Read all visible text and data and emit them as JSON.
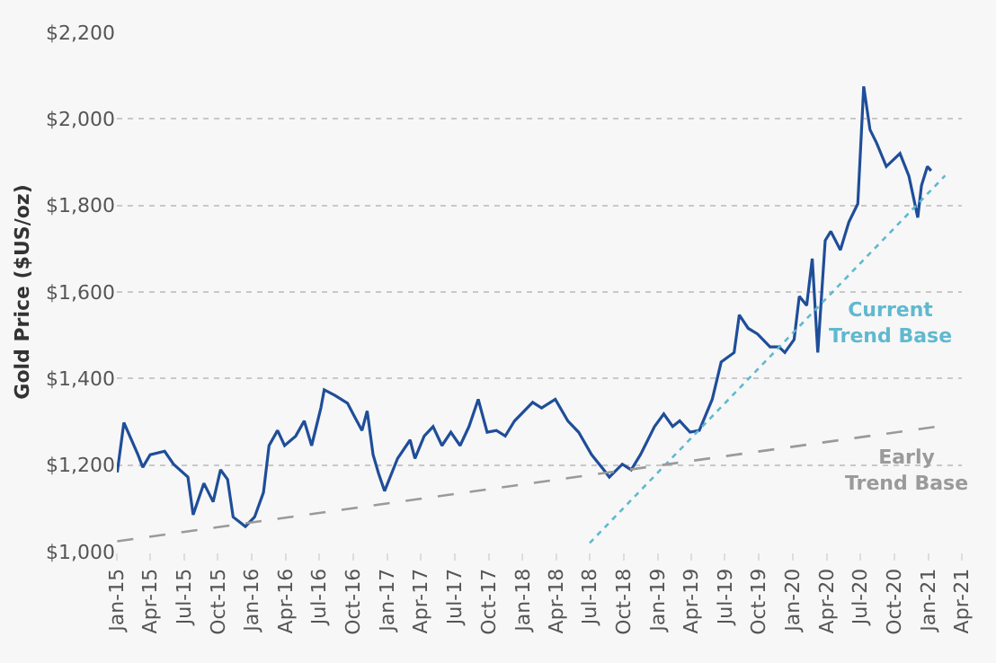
{
  "chart_data": {
    "type": "line",
    "ylabel": "Gold Price ($US/oz)",
    "xlim": [
      "2015-01-01",
      "2021-04-01"
    ],
    "xticks": [
      {
        "value": "2015-01",
        "label": "Jan-15"
      },
      {
        "value": "2015-04",
        "label": "Apr-15"
      },
      {
        "value": "2015-07",
        "label": "Jul-15"
      },
      {
        "value": "2015-10",
        "label": "Oct-15"
      },
      {
        "value": "2016-01",
        "label": "Jan-16"
      },
      {
        "value": "2016-04",
        "label": "Apr-16"
      },
      {
        "value": "2016-07",
        "label": "Jul-16"
      },
      {
        "value": "2016-10",
        "label": "Oct-16"
      },
      {
        "value": "2017-01",
        "label": "Jan-17"
      },
      {
        "value": "2017-04",
        "label": "Apr-17"
      },
      {
        "value": "2017-07",
        "label": "Jul-17"
      },
      {
        "value": "2017-10",
        "label": "Oct-17"
      },
      {
        "value": "2018-01",
        "label": "Jan-18"
      },
      {
        "value": "2018-04",
        "label": "Apr-18"
      },
      {
        "value": "2018-07",
        "label": "Jul-18"
      },
      {
        "value": "2018-10",
        "label": "Oct-18"
      },
      {
        "value": "2019-01",
        "label": "Jan-19"
      },
      {
        "value": "2019-04",
        "label": "Apr-19"
      },
      {
        "value": "2019-07",
        "label": "Jul-19"
      },
      {
        "value": "2019-10",
        "label": "Oct-19"
      },
      {
        "value": "2020-01",
        "label": "Jan-20"
      },
      {
        "value": "2020-04",
        "label": "Apr-20"
      },
      {
        "value": "2020-07",
        "label": "Jul-20"
      },
      {
        "value": "2020-10",
        "label": "Oct-20"
      },
      {
        "value": "2021-01",
        "label": "Jan-21"
      },
      {
        "value": "2021-04",
        "label": "Apr-21"
      }
    ],
    "ylim": [
      1000,
      2200
    ],
    "yticks": [
      {
        "value": 1000,
        "label": "$1,000"
      },
      {
        "value": 1200,
        "label": "$1,200"
      },
      {
        "value": 1400,
        "label": "$1,400"
      },
      {
        "value": 1600,
        "label": "$1,600"
      },
      {
        "value": 1800,
        "label": "$1,800"
      },
      {
        "value": 2000,
        "label": "$2,000"
      },
      {
        "value": 2200,
        "label": "$2,200"
      }
    ],
    "grid": "y",
    "marker": "none",
    "series": [
      {
        "color": "#1f4e99",
        "line_style": "solid",
        "x": [
          "2015-01-02",
          "2015-01-20",
          "2015-02-27",
          "2015-03-12",
          "2015-04-01",
          "2015-05-10",
          "2015-06-03",
          "2015-07-12",
          "2015-07-26",
          "2015-08-24",
          "2015-09-18",
          "2015-10-08",
          "2015-10-27",
          "2015-11-11",
          "2015-12-14",
          "2016-01-08",
          "2016-02-01",
          "2016-02-16",
          "2016-03-10",
          "2016-03-29",
          "2016-04-28",
          "2016-05-21",
          "2016-06-10",
          "2016-07-05",
          "2016-07-14",
          "2016-08-12",
          "2016-09-15",
          "2016-09-30",
          "2016-10-24",
          "2016-11-07",
          "2016-11-23",
          "2016-12-08",
          "2016-12-24",
          "2017-01-28",
          "2017-03-03",
          "2017-03-16",
          "2017-04-10",
          "2017-05-04",
          "2017-05-28",
          "2017-06-21",
          "2017-07-16",
          "2017-08-09",
          "2017-09-03",
          "2017-09-27",
          "2017-10-22",
          "2017-11-15",
          "2017-12-10",
          "2018-01-28",
          "2018-02-21",
          "2018-03-30",
          "2018-05-03",
          "2018-06-01",
          "2018-07-06",
          "2018-08-08",
          "2018-08-23",
          "2018-09-27",
          "2018-10-21",
          "2018-11-15",
          "2018-12-23",
          "2019-01-17",
          "2019-02-10",
          "2019-03-01",
          "2019-03-29",
          "2019-04-23",
          "2019-05-28",
          "2019-06-21",
          "2019-07-26",
          "2019-08-09",
          "2019-09-02",
          "2019-09-27",
          "2019-10-31",
          "2019-11-24",
          "2019-12-10",
          "2020-01-04",
          "2020-01-18",
          "2020-02-07",
          "2020-02-22",
          "2020-03-08",
          "2020-03-18",
          "2020-03-28",
          "2020-04-12",
          "2020-05-08",
          "2020-05-31",
          "2020-06-24",
          "2020-07-10",
          "2020-07-27",
          "2020-08-14",
          "2020-09-09",
          "2020-10-16",
          "2020-11-09",
          "2020-12-03",
          "2020-12-13",
          "2020-12-29",
          "2021-01-08"
        ],
        "values": [
          1183,
          1298,
          1224,
          1195,
          1224,
          1232,
          1202,
          1172,
          1085,
          1158,
          1115,
          1189,
          1167,
          1080,
          1058,
          1080,
          1137,
          1245,
          1280,
          1245,
          1267,
          1302,
          1245,
          1332,
          1374,
          1361,
          1343,
          1318,
          1280,
          1325,
          1224,
          1180,
          1140,
          1215,
          1258,
          1215,
          1267,
          1289,
          1245,
          1276,
          1245,
          1289,
          1352,
          1276,
          1280,
          1267,
          1302,
          1345,
          1332,
          1352,
          1302,
          1276,
          1224,
          1189,
          1172,
          1202,
          1189,
          1224,
          1289,
          1318,
          1289,
          1302,
          1276,
          1280,
          1352,
          1438,
          1460,
          1547,
          1516,
          1503,
          1473,
          1473,
          1460,
          1490,
          1590,
          1569,
          1677,
          1460,
          1590,
          1719,
          1740,
          1697,
          1762,
          1804,
          2075,
          1975,
          1944,
          1890,
          1920,
          1868,
          1772,
          1846,
          1890,
          1880
        ]
      },
      {
        "color": "#5fb9cf",
        "line_style": "dotted",
        "x": [
          "2018-07-01",
          "2021-02-15"
        ],
        "values": [
          1020,
          1869
        ]
      },
      {
        "color": "#9a9a9a",
        "line_style": "dashed",
        "x": [
          "2015-01-02",
          "2021-02-01"
        ],
        "values": [
          1024,
          1290
        ]
      }
    ],
    "annotations": [
      "Current\nTrend Base",
      "Early\nTrend Base"
    ]
  }
}
